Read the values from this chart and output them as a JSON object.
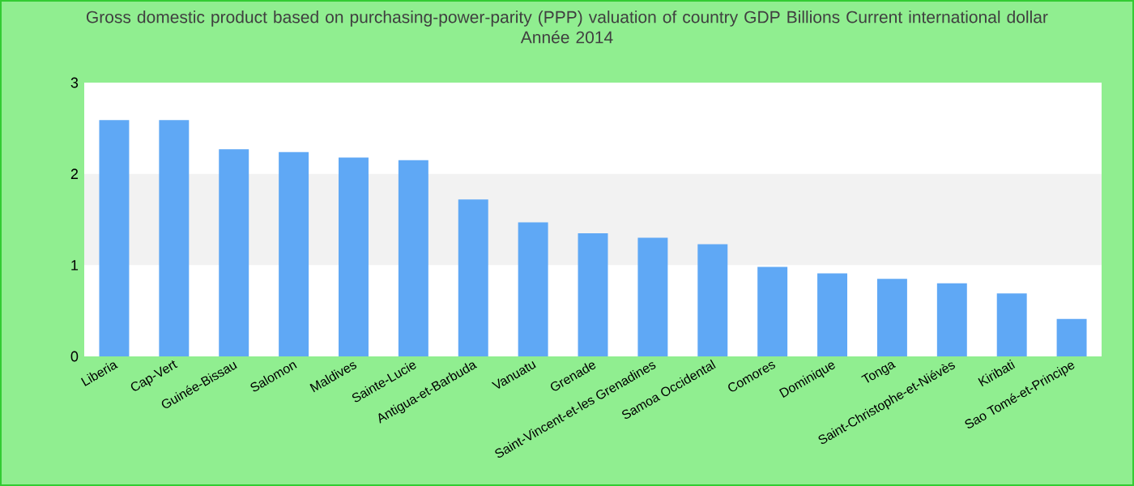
{
  "chart_data": {
    "type": "bar",
    "title": "Gross domestic product based on purchasing-power-parity (PPP) valuation of country GDP Billions Current international dollar",
    "subtitle": "Année 2014",
    "categories": [
      "Liberia",
      "Cap-Vert",
      "Guinée-Bissau",
      "Salomon",
      "Maldives",
      "Sainte-Lucie",
      "Antigua-et-Barbuda",
      "Vanuatu",
      "Grenade",
      "Saint-Vincent-et-les Grenadines",
      "Samoa Occidental",
      "Comores",
      "Dominique",
      "Tonga",
      "Saint-Christophe-et-Niévès",
      "Kiribati",
      "Sao Tomé-et-Principe"
    ],
    "values": [
      2.59,
      2.59,
      2.27,
      2.24,
      2.18,
      2.15,
      1.72,
      1.47,
      1.35,
      1.3,
      1.23,
      0.98,
      0.91,
      0.85,
      0.8,
      0.69,
      0.41
    ],
    "color": "#5fa8f5",
    "ylim": [
      0,
      3
    ],
    "yticks": [
      0,
      1,
      2,
      3
    ],
    "grid": false,
    "bands": [
      {
        "axis": "y",
        "from": 1,
        "to": 2,
        "color": "#f2f2f2"
      }
    ]
  }
}
